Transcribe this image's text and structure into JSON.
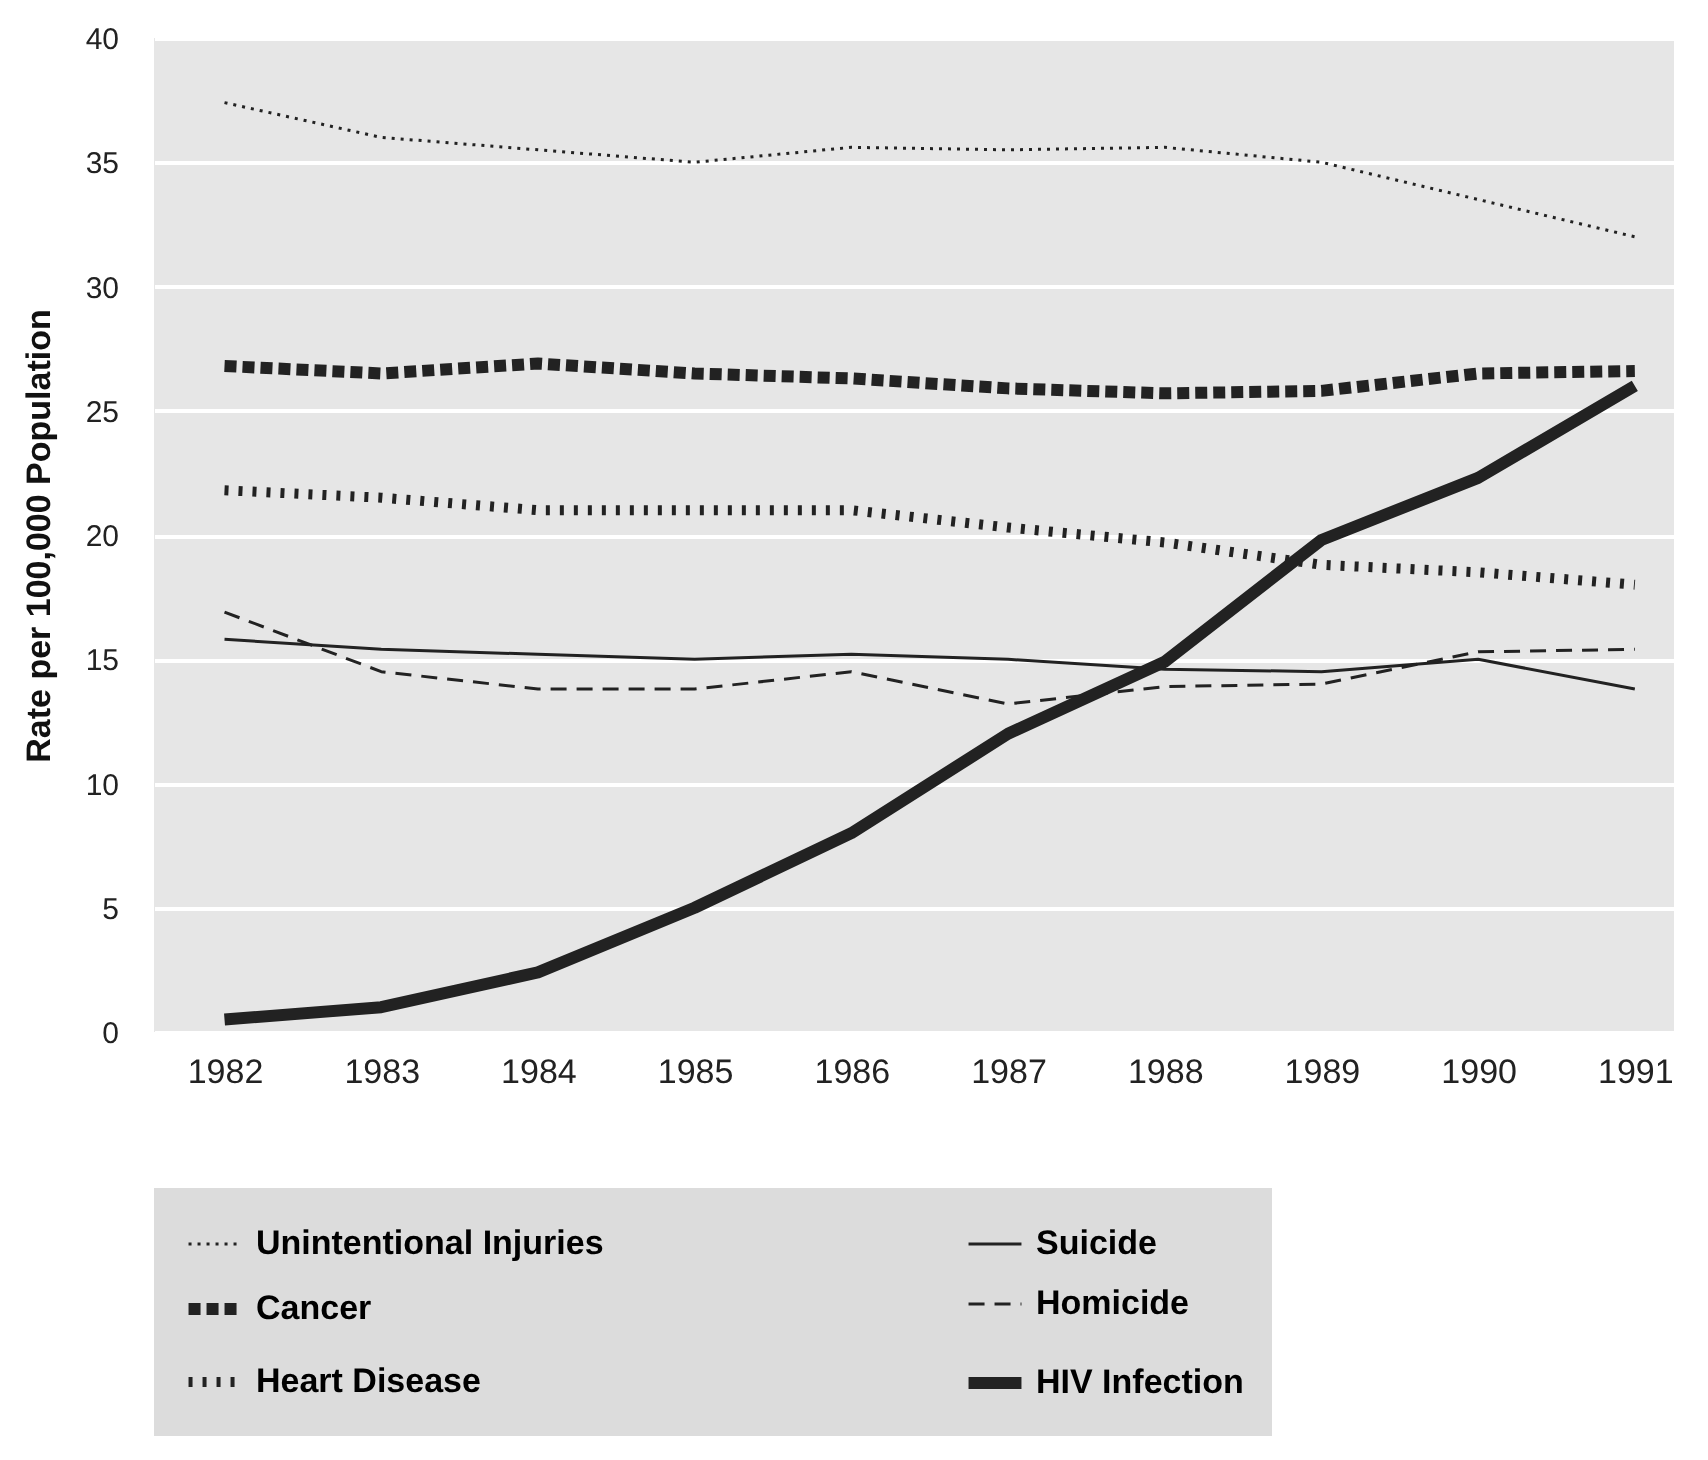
{
  "chart_data": {
    "type": "line",
    "ylabel": "Rate per 100,000 Population",
    "x": [
      1982,
      1983,
      1984,
      1985,
      1986,
      1987,
      1988,
      1989,
      1990,
      1991
    ],
    "xlim": [
      1981.55,
      1991.25
    ],
    "xticks": [
      1982,
      1983,
      1984,
      1985,
      1986,
      1987,
      1988,
      1989,
      1990,
      1991
    ],
    "ylim": [
      0,
      40
    ],
    "yticks": [
      0,
      5,
      10,
      15,
      20,
      25,
      30,
      35,
      40
    ],
    "grid": "y",
    "legend": "bottom",
    "series": [
      {
        "name": "Unintentional Injuries",
        "color": "#222222",
        "line_style": "dotted",
        "values": [
          37.4,
          36.0,
          35.5,
          35.0,
          35.6,
          35.5,
          35.6,
          35.0,
          33.5,
          32.0
        ]
      },
      {
        "name": "Cancer",
        "color": "#222222",
        "line_style": "dashed",
        "values": [
          26.8,
          26.5,
          26.9,
          26.5,
          26.3,
          25.9,
          25.7,
          25.8,
          26.5,
          26.6
        ]
      },
      {
        "name": "Heart Disease",
        "color": "#222222",
        "line_style": "dotted",
        "values": [
          21.8,
          21.5,
          21.0,
          21.0,
          21.0,
          20.3,
          19.7,
          18.8,
          18.5,
          18.0
        ]
      },
      {
        "name": "Suicide",
        "color": "#222222",
        "line_style": "solid",
        "values": [
          15.8,
          15.4,
          15.2,
          15.0,
          15.2,
          15.0,
          14.6,
          14.5,
          15.0,
          13.8
        ]
      },
      {
        "name": "Homicide",
        "color": "#222222",
        "line_style": "dashed",
        "values": [
          16.9,
          14.5,
          13.8,
          13.8,
          14.5,
          13.2,
          13.9,
          14.0,
          15.3,
          15.4
        ]
      },
      {
        "name": "HIV Infection",
        "color": "#222222",
        "line_style": "solid",
        "values": [
          0.5,
          1.0,
          2.4,
          5.0,
          8.0,
          12.0,
          14.9,
          19.8,
          22.3,
          26.0
        ]
      }
    ]
  }
}
